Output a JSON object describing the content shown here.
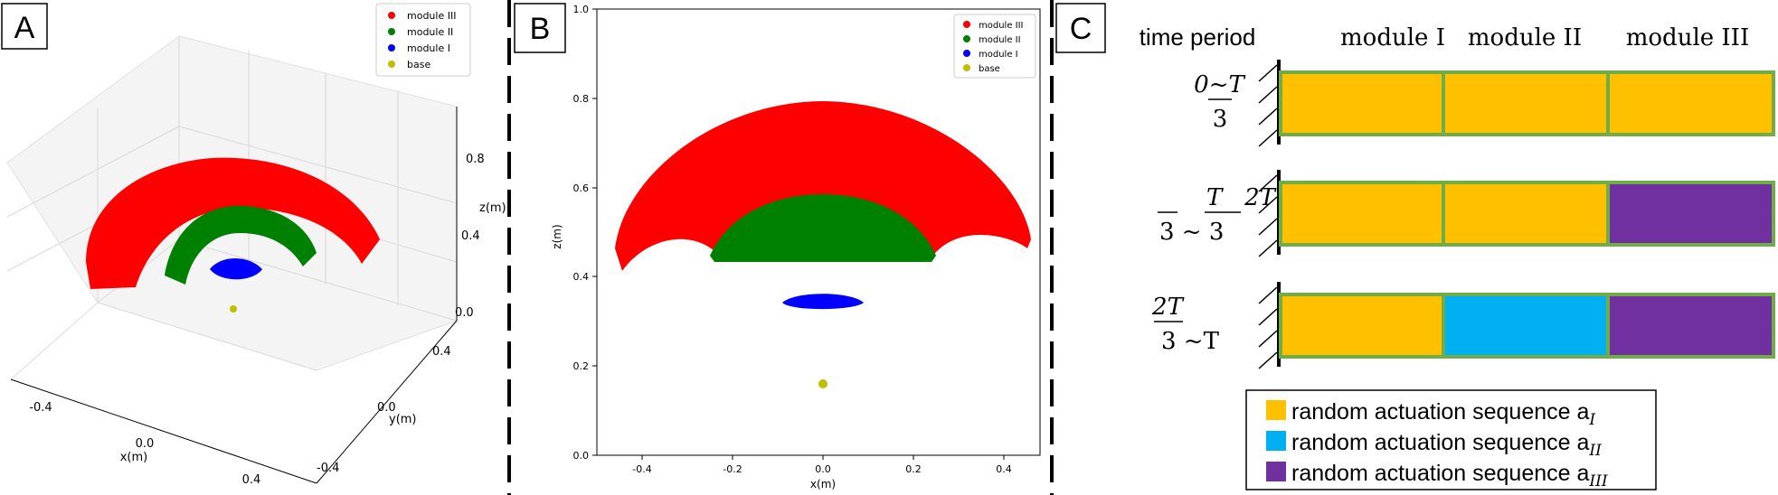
{
  "panels": {
    "a": {
      "tag": "A",
      "legend": [
        "module III",
        "module II",
        "module I",
        "base"
      ],
      "x_label": "x(m)",
      "y_label": "y(m)",
      "z_label": "z(m)",
      "x_ticks": [
        "-0.4",
        "0.0",
        "0.4"
      ],
      "y_ticks": [
        "0.4",
        "0.0",
        "-0.4"
      ],
      "z_ticks": [
        "0.8",
        "0.4",
        "0.0"
      ]
    },
    "b": {
      "tag": "B",
      "legend": [
        "module III",
        "module II",
        "module I",
        "base"
      ],
      "x_label": "x(m)",
      "y_label": "z(m)",
      "x_ticks": [
        "-0.4",
        "-0.2",
        "0.0",
        "0.2",
        "0.4"
      ],
      "y_ticks": [
        "0.0",
        "0.2",
        "0.4",
        "0.6",
        "0.8",
        "1.0"
      ]
    },
    "c": {
      "tag": "C",
      "header": [
        "time period",
        "module I",
        "module II",
        "module III"
      ],
      "rows": [
        {
          "period_top": "0~T",
          "period_bottom": "3",
          "blocks": [
            "a_I",
            "a_I",
            "a_I"
          ]
        },
        {
          "period_top": "T   2T",
          "period_bottom": "3 ~ 3",
          "blocks": [
            "a_I",
            "a_I",
            "a_III"
          ]
        },
        {
          "period_top": "2T",
          "period_bottom": "3 ~T",
          "blocks": [
            "a_I",
            "a_II",
            "a_III"
          ]
        }
      ],
      "legend": [
        {
          "text": "random actuation sequence a",
          "sub": "I",
          "color": "#ffc000"
        },
        {
          "text": "random actuation sequence a",
          "sub": "II",
          "color": "#00b0f0"
        },
        {
          "text": "random actuation sequence a",
          "sub": "III",
          "color": "#7030a0"
        }
      ]
    }
  },
  "colors": {
    "module_III": "#ff0000",
    "module_II": "#008000",
    "module_I": "#0000ff",
    "base": "#bfbf00",
    "seq_I": "#ffc000",
    "seq_II": "#00b0f0",
    "seq_III": "#7030a0",
    "block_border": "#70ad47"
  }
}
